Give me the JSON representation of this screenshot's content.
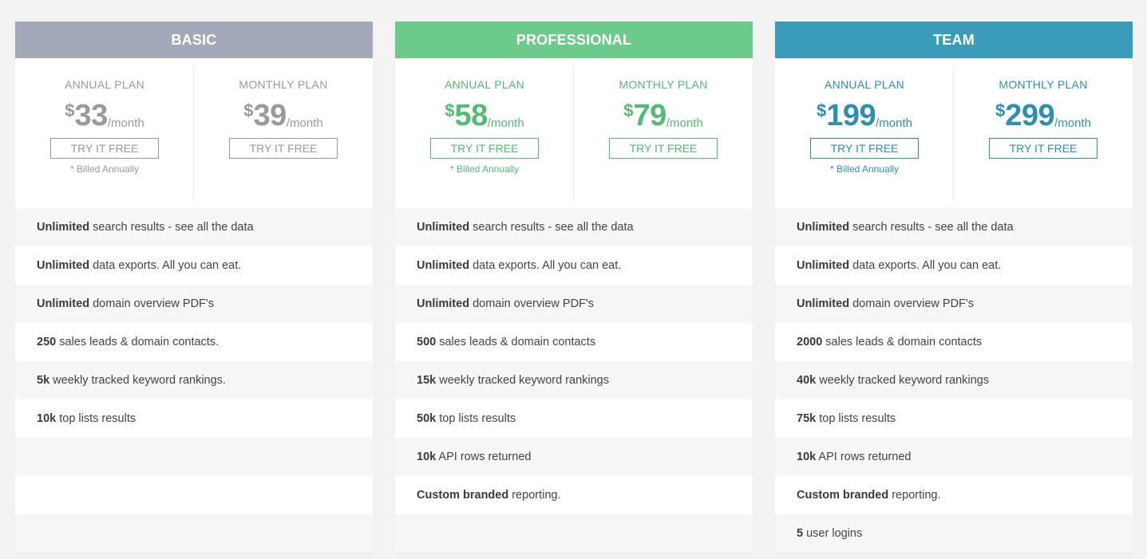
{
  "plans": [
    {
      "name": "BASIC",
      "color": "#a3a9b9",
      "text_color": "#9a9a9a",
      "annual": {
        "label": "ANNUAL PLAN",
        "currency": "$",
        "amount": "33",
        "per": "/month",
        "button": "TRY IT FREE",
        "note": "* Billed Annually"
      },
      "monthly": {
        "label": "MONTHLY PLAN",
        "currency": "$",
        "amount": "39",
        "per": "/month",
        "button": "TRY IT FREE"
      },
      "features": [
        {
          "bold": "Unlimited",
          "text": " search results - see all the data"
        },
        {
          "bold": "Unlimited",
          "text": " data exports. All you can eat."
        },
        {
          "bold": "Unlimited",
          "text": " domain overview PDF's"
        },
        {
          "bold": "250",
          "text": " sales leads & domain contacts."
        },
        {
          "bold": "5k",
          "text": " weekly tracked keyword rankings."
        },
        {
          "bold": "10k",
          "text": " top lists results"
        },
        {
          "bold": "",
          "text": ""
        },
        {
          "bold": "",
          "text": ""
        },
        {
          "bold": "",
          "text": ""
        }
      ]
    },
    {
      "name": "PROFESSIONAL",
      "color": "#6ccb8a",
      "text_color": "#55b977",
      "annual": {
        "label": "ANNUAL PLAN",
        "currency": "$",
        "amount": "58",
        "per": "/month",
        "button": "TRY IT FREE",
        "note": "* Billed Annually"
      },
      "monthly": {
        "label": "MONTHLY PLAN",
        "currency": "$",
        "amount": "79",
        "per": "/month",
        "button": "TRY IT FREE"
      },
      "features": [
        {
          "bold": "Unlimited",
          "text": " search results - see all the data"
        },
        {
          "bold": "Unlimited",
          "text": " data exports. All you can eat."
        },
        {
          "bold": "Unlimited",
          "text": " domain overview PDF's"
        },
        {
          "bold": "500",
          "text": " sales leads & domain contacts"
        },
        {
          "bold": "15k",
          "text": " weekly tracked keyword rankings"
        },
        {
          "bold": "50k",
          "text": " top lists results"
        },
        {
          "bold": "10k",
          "text": " API rows returned"
        },
        {
          "bold": "Custom branded",
          "text": " reporting."
        },
        {
          "bold": "",
          "text": ""
        }
      ]
    },
    {
      "name": "TEAM",
      "color": "#3a9cb8",
      "text_color": "#2f8fad",
      "annual": {
        "label": "ANNUAL PLAN",
        "currency": "$",
        "amount": "199",
        "per": "/month",
        "button": "TRY IT FREE",
        "note": "* Billed Annually"
      },
      "monthly": {
        "label": "MONTHLY PLAN",
        "currency": "$",
        "amount": "299",
        "per": "/month",
        "button": "TRY IT FREE"
      },
      "features": [
        {
          "bold": "Unlimited",
          "text": " search results - see all the data"
        },
        {
          "bold": "Unlimited",
          "text": " data exports. All you can eat."
        },
        {
          "bold": "Unlimited",
          "text": " domain overview PDF's"
        },
        {
          "bold": "2000",
          "text": " sales leads & domain contacts"
        },
        {
          "bold": "40k",
          "text": " weekly tracked keyword rankings"
        },
        {
          "bold": "75k",
          "text": " top lists results"
        },
        {
          "bold": "10k",
          "text": " API rows returned"
        },
        {
          "bold": "Custom branded",
          "text": " reporting."
        },
        {
          "bold": "5",
          "text": " user logins"
        }
      ]
    }
  ]
}
